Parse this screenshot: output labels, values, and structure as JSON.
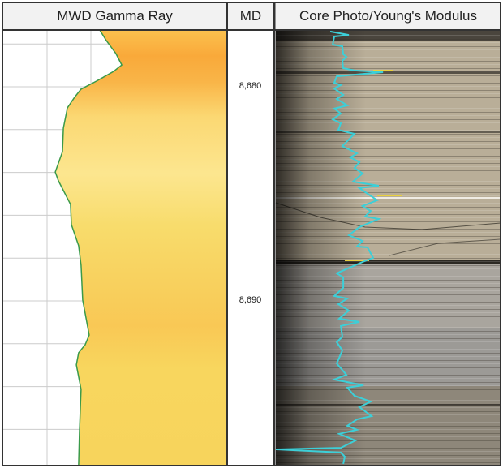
{
  "chart_data": {
    "type": "line",
    "tracks": [
      {
        "title": "MWD Gamma Ray",
        "curve": "gamma_ray",
        "fill": "right"
      },
      {
        "title": "MD",
        "curve": null
      },
      {
        "title": "Core Photo/Young's Modulus",
        "curve": "youngs_modulus"
      }
    ],
    "depth_axis": {
      "label": "MD",
      "range": [
        8677.35,
        8697.7
      ],
      "tick_labels": [
        "8,680",
        "8,690"
      ],
      "tick_values": [
        8680,
        8690
      ],
      "grid_interval": 2
    },
    "gamma_ray_relative_scale": [
      0,
      100
    ],
    "gamma_ray": {
      "depth": [
        8677.35,
        8677.84,
        8678.45,
        8678.98,
        8679.28,
        8679.73,
        8680.11,
        8680.49,
        8680.98,
        8681.93,
        8683.03,
        8683.98,
        8684.39,
        8685.49,
        8686.44,
        8687.42,
        8688.33,
        8689.96,
        8691.59,
        8692.05,
        8692.42,
        8692.99,
        8694.13,
        8696.02,
        8697.65
      ],
      "value": [
        43.3,
        46.2,
        50.5,
        53.1,
        49.5,
        41.9,
        35.0,
        32.1,
        28.9,
        27.1,
        26.7,
        23.5,
        24.9,
        30.3,
        30.7,
        33.9,
        35.0,
        35.7,
        38.6,
        36.8,
        33.9,
        32.9,
        35.0,
        34.3,
        33.9
      ]
    },
    "youngs_modulus_relative_scale": [
      0,
      100
    ],
    "youngs_modulus": {
      "depth": [
        8677.42,
        8677.58,
        8677.65,
        8678.03,
        8678.11,
        8678.48,
        8678.6,
        8678.79,
        8679.13,
        8679.24,
        8679.32,
        8679.51,
        8679.81,
        8679.92,
        8680.08,
        8680.38,
        8680.57,
        8680.87,
        8681.02,
        8681.25,
        8681.52,
        8681.7,
        8682.01,
        8682.2,
        8682.77,
        8683.11,
        8683.3,
        8683.52,
        8683.79,
        8684.05,
        8684.43,
        8684.62,
        8684.73,
        8685.3,
        8685.57,
        8685.8,
        8686.06,
        8686.17,
        8686.55,
        8686.93,
        8687.2,
        8687.46,
        8687.5,
        8687.99,
        8688.18,
        8688.71,
        8688.9,
        8689.39,
        8689.77,
        8689.89,
        8690.15,
        8690.45,
        8690.83,
        8690.98,
        8691.17,
        8691.67,
        8691.93,
        8692.31,
        8692.92,
        8693.45,
        8693.67,
        8693.94,
        8694.05,
        8694.43,
        8694.7,
        8694.96,
        8695.38,
        8695.53,
        8695.83,
        8696.02,
        8696.21,
        8696.52,
        8696.86,
        8696.93,
        8697.08,
        8697.27,
        8697.61
      ],
      "value": [
        24.2,
        32.5,
        26.0,
        25.3,
        29.6,
        30.0,
        31.4,
        29.6,
        30.0,
        35.0,
        47.7,
        27.1,
        26.0,
        28.9,
        26.0,
        30.0,
        27.1,
        31.8,
        26.0,
        28.9,
        25.3,
        28.9,
        27.8,
        35.0,
        29.6,
        36.1,
        33.2,
        37.2,
        35.0,
        38.6,
        34.3,
        45.8,
        37.2,
        45.1,
        38.6,
        42.2,
        39.7,
        45.8,
        37.2,
        32.5,
        38.6,
        36.1,
        40.8,
        43.3,
        38.6,
        27.1,
        30.0,
        30.0,
        26.0,
        31.8,
        27.8,
        32.5,
        28.2,
        37.2,
        28.9,
        29.6,
        27.1,
        29.6,
        27.1,
        31.4,
        26.0,
        39.0,
        31.8,
        35.0,
        42.2,
        37.2,
        42.6,
        36.1,
        31.8,
        36.1,
        28.2,
        35.4,
        28.9,
        0,
        28.9,
        30.7,
        30.0
      ]
    },
    "colors": {
      "gamma_fill_top": "#f9a93a",
      "gamma_fill_mid": "#fbe38a",
      "gamma_fill_low": "#f7d35c",
      "gamma_line": "#3a9a4a",
      "modulus_line": "#3ccfd8",
      "grid": "#cccccc"
    }
  }
}
